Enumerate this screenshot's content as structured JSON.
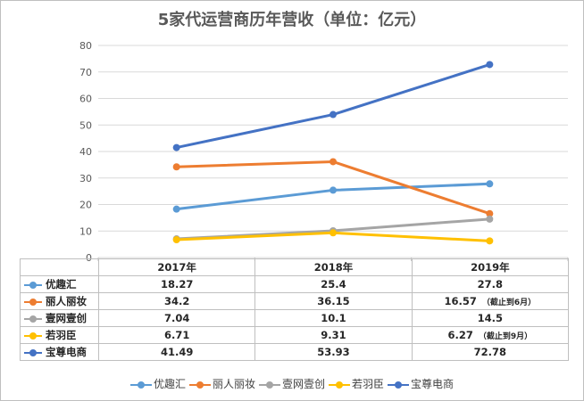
{
  "chart_data": {
    "type": "line",
    "title": "5家代运营商历年营收（单位：亿元）",
    "categories": [
      "2017年",
      "2018年",
      "2019年"
    ],
    "ylim": [
      0,
      80
    ],
    "yticks": [
      0,
      10,
      20,
      30,
      40,
      50,
      60,
      70,
      80
    ],
    "grid": true,
    "legend_position": "bottom",
    "series": [
      {
        "name": "优趣汇",
        "color": "#5b9bd5",
        "values": [
          18.27,
          25.4,
          27.8
        ],
        "labels": [
          "18.27",
          "25.4",
          "27.8"
        ],
        "note": ""
      },
      {
        "name": "丽人丽妆",
        "color": "#ed7d31",
        "values": [
          34.2,
          36.15,
          16.57
        ],
        "labels": [
          "34.2",
          "36.15",
          "16.57"
        ],
        "note": "（截止到6月）"
      },
      {
        "name": "壹网壹创",
        "color": "#a5a5a5",
        "values": [
          7.04,
          10.1,
          14.5
        ],
        "labels": [
          "7.04",
          "10.1",
          "14.5"
        ],
        "note": ""
      },
      {
        "name": "若羽臣",
        "color": "#ffc000",
        "values": [
          6.71,
          9.31,
          6.27
        ],
        "labels": [
          "6.71",
          "9.31",
          "6.27"
        ],
        "note": "（截止到9月）"
      },
      {
        "name": "宝尊电商",
        "color": "#4472c4",
        "values": [
          41.49,
          53.93,
          72.78
        ],
        "labels": [
          "41.49",
          "53.93",
          "72.78"
        ],
        "note": ""
      }
    ]
  }
}
